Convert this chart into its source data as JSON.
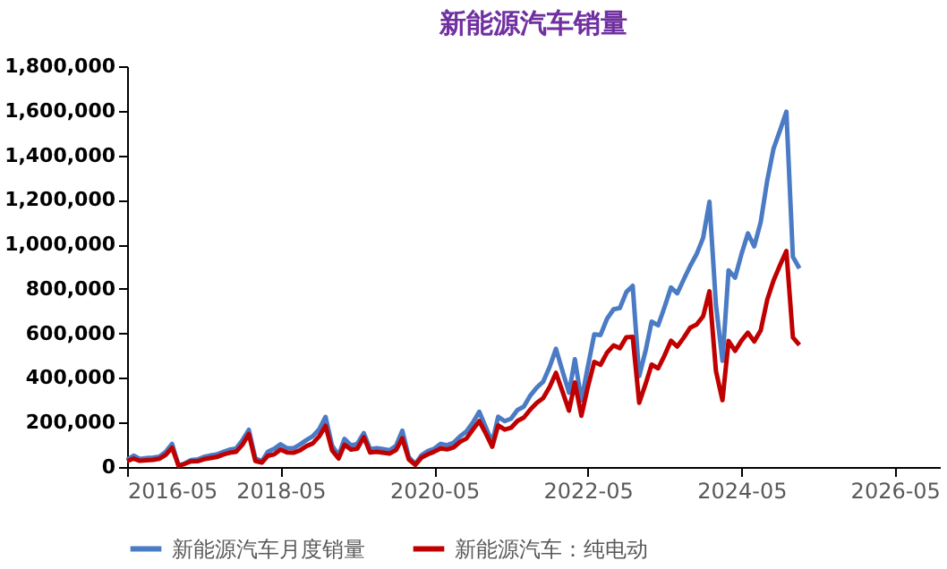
{
  "chart_data": {
    "type": "line",
    "title": "新能源汽车销量",
    "x": [
      "2016-05",
      "2016-06",
      "2016-07",
      "2016-08",
      "2016-09",
      "2016-10",
      "2016-11",
      "2016-12",
      "2017-01",
      "2017-02",
      "2017-03",
      "2017-04",
      "2017-05",
      "2017-06",
      "2017-07",
      "2017-08",
      "2017-09",
      "2017-10",
      "2017-11",
      "2017-12",
      "2018-01",
      "2018-02",
      "2018-03",
      "2018-04",
      "2018-05",
      "2018-06",
      "2018-07",
      "2018-08",
      "2018-09",
      "2018-10",
      "2018-11",
      "2018-12",
      "2019-01",
      "2019-02",
      "2019-03",
      "2019-04",
      "2019-05",
      "2019-06",
      "2019-07",
      "2019-08",
      "2019-09",
      "2019-10",
      "2019-11",
      "2019-12",
      "2020-01",
      "2020-02",
      "2020-03",
      "2020-04",
      "2020-05",
      "2020-06",
      "2020-07",
      "2020-08",
      "2020-09",
      "2020-10",
      "2020-11",
      "2020-12",
      "2021-01",
      "2021-02",
      "2021-03",
      "2021-04",
      "2021-05",
      "2021-06",
      "2021-07",
      "2021-08",
      "2021-09",
      "2021-10",
      "2021-11",
      "2021-12",
      "2022-01",
      "2022-02",
      "2022-03",
      "2022-04",
      "2022-05",
      "2022-06",
      "2022-07",
      "2022-08",
      "2022-09",
      "2022-10",
      "2022-11",
      "2022-12",
      "2023-01",
      "2023-02",
      "2023-03",
      "2023-04",
      "2023-05",
      "2023-06",
      "2023-07",
      "2023-08",
      "2023-09",
      "2023-10",
      "2023-11",
      "2023-12",
      "2024-01",
      "2024-02",
      "2024-03",
      "2024-04",
      "2024-05",
      "2024-06",
      "2024-07",
      "2024-08",
      "2024-09",
      "2024-10",
      "2024-11",
      "2024-12",
      "2025-01",
      "2025-02"
    ],
    "series": [
      {
        "name": "新能源汽车月度销量",
        "color": "#4a7bc4",
        "values": [
          33000,
          51000,
          36000,
          40000,
          42000,
          46000,
          68000,
          104000,
          6000,
          17000,
          31000,
          34000,
          45000,
          52000,
          56000,
          68000,
          78000,
          82000,
          121000,
          167000,
          39000,
          26000,
          68000,
          82000,
          102000,
          84000,
          84000,
          101000,
          121000,
          138000,
          170000,
          225000,
          96000,
          53000,
          126000,
          97000,
          104000,
          152000,
          80000,
          85000,
          80000,
          75000,
          95000,
          163000,
          44000,
          13000,
          53000,
          72000,
          82000,
          104000,
          98000,
          109000,
          138000,
          160000,
          200000,
          248000,
          179000,
          110000,
          226000,
          206000,
          217000,
          256000,
          271000,
          321000,
          357000,
          383000,
          450000,
          531000,
          431000,
          334000,
          484000,
          299000,
          447000,
          596000,
          593000,
          666000,
          708000,
          714000,
          786000,
          814000,
          408000,
          525000,
          653000,
          636000,
          717000,
          806000,
          780000,
          843000,
          904000,
          956000,
          1029000,
          1191000,
          729000,
          477000,
          883000,
          850000,
          955000,
          1049000,
          991000,
          1100000,
          1287000,
          1430000,
          1512000,
          1596000,
          944000,
          892000
        ]
      },
      {
        "name": "新能源汽车：纯电动",
        "color": "#c00000",
        "values": [
          26000,
          38000,
          28000,
          30000,
          32000,
          37000,
          55000,
          87000,
          5000,
          15000,
          25000,
          26000,
          35000,
          40000,
          45000,
          56000,
          64000,
          68000,
          101000,
          148000,
          27000,
          20000,
          50000,
          57000,
          78000,
          65000,
          64000,
          75000,
          94000,
          106000,
          138000,
          185000,
          75000,
          38000,
          100000,
          78000,
          82000,
          134000,
          65000,
          68000,
          64000,
          60000,
          76000,
          129000,
          34000,
          10000,
          42000,
          57000,
          69000,
          83000,
          79000,
          88000,
          113000,
          128000,
          169000,
          206000,
          151000,
          91000,
          187000,
          168000,
          176000,
          207000,
          222000,
          258000,
          288000,
          309000,
          360000,
          423000,
          339000,
          253000,
          380000,
          230000,
          357000,
          472000,
          459000,
          514000,
          546000,
          534000,
          583000,
          585000,
          288000,
          375000,
          460000,
          443000,
          500000,
          567000,
          541000,
          581000,
          626000,
          640000,
          677000,
          789000,
          431000,
          300000,
          566000,
          522000,
          567000,
          603000,
          564000,
          614000,
          751000,
          838000,
          907000,
          970000,
          582000,
          548000
        ]
      }
    ],
    "xlim": [
      "2016-05",
      "2026-12"
    ],
    "xticks": [
      "2016-05",
      "2018-05",
      "2020-05",
      "2022-05",
      "2024-05",
      "2026-05"
    ],
    "ylim": [
      0,
      1800000
    ],
    "yticks": [
      {
        "value": 0,
        "label": "0"
      },
      {
        "value": 200000,
        "label": "200,000"
      },
      {
        "value": 400000,
        "label": "400,000"
      },
      {
        "value": 600000,
        "label": "600,000"
      },
      {
        "value": 800000,
        "label": "800,000"
      },
      {
        "value": 1000000,
        "label": "1,000,000"
      },
      {
        "value": 1200000,
        "label": "1,200,000"
      },
      {
        "value": 1400000,
        "label": "1,400,000"
      },
      {
        "value": 1600000,
        "label": "1,600,000"
      },
      {
        "value": 1800000,
        "label": "1,800,000"
      }
    ],
    "legend": "bottom",
    "marker": "none",
    "line_style": "solid"
  }
}
